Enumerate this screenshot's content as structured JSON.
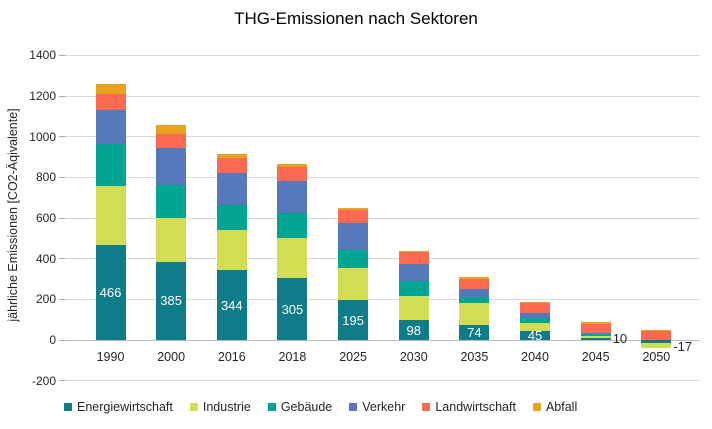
{
  "title": "THG-Emissionen nach Sektoren",
  "y_axis": {
    "label": "jährliche Emissionen [CO2-Äqivalente]",
    "ticks": [
      1400,
      1200,
      1000,
      800,
      600,
      400,
      200,
      0,
      -200
    ]
  },
  "colors": {
    "grid": "#d9d9d9",
    "zero_line": "#bfbfbf",
    "tick_mark": "#a6a6a6",
    "text": "#262626",
    "bar_label_inside": "#ffffff"
  },
  "chart_data": {
    "type": "bar",
    "stacked": true,
    "title": "THG-Emissionen nach Sektoren",
    "xlabel": "",
    "ylabel": "jährliche Emissionen [CO2-Äqivalente]",
    "ylim": [
      -200,
      1400
    ],
    "grid": true,
    "legend_position": "bottom",
    "categories": [
      "1990",
      "2000",
      "2016",
      "2018",
      "2025",
      "2030",
      "2035",
      "2040",
      "2045",
      "2050"
    ],
    "series": [
      {
        "name": "Energiewirtschaft",
        "color": "#0e7d89",
        "values": [
          466,
          385,
          344,
          305,
          195,
          98,
          74,
          45,
          10,
          -17
        ]
      },
      {
        "name": "Industrie",
        "color": "#d2dd53",
        "values": [
          290,
          214,
          199,
          195,
          160,
          120,
          107,
          41,
          11,
          -24
        ]
      },
      {
        "name": "Gebäude",
        "color": "#02a592",
        "values": [
          206,
          162,
          121,
          123,
          90,
          74,
          30,
          20,
          12,
          0
        ]
      },
      {
        "name": "Verkehr",
        "color": "#5679bd",
        "values": [
          170,
          185,
          159,
          161,
          130,
          84,
          42,
          27,
          2,
          0
        ]
      },
      {
        "name": "Landwirtschaft",
        "color": "#fc6a51",
        "values": [
          78,
          67,
          72,
          69,
          65,
          55,
          47,
          53,
          45,
          46
        ]
      },
      {
        "name": "Abfall",
        "color": "#e9a21d",
        "values": [
          50,
          46,
          22,
          13,
          11,
          7,
          10,
          2,
          8,
          2
        ]
      }
    ],
    "data_labels": {
      "series": "Energiewirtschaft",
      "values": [
        "466",
        "385",
        "344",
        "305",
        "195",
        "98",
        "74",
        "45",
        "10",
        "-17"
      ],
      "outside_from_index": 8
    }
  }
}
